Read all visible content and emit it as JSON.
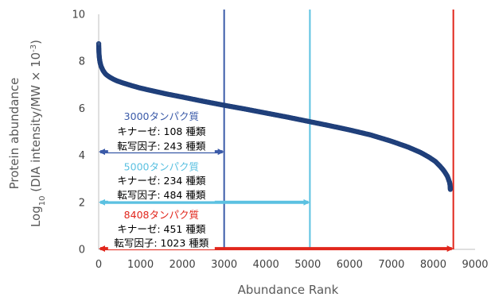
{
  "chart_data": {
    "type": "scatter",
    "title": "",
    "xlabel": "Abundance Rank",
    "ylabel_line1": "Protein abundance",
    "ylabel_line2_prefix": "Log",
    "ylabel_line2_sub": "10",
    "ylabel_line2_mid": " (DIA intensity/MW × 10",
    "ylabel_line2_sup": "-3",
    "ylabel_line2_end": ")",
    "xlim": [
      0,
      9000
    ],
    "ylim": [
      0,
      10
    ],
    "xticks": [
      0,
      1000,
      2000,
      3000,
      4000,
      5000,
      6000,
      7000,
      8000,
      9000
    ],
    "yticks": [
      0,
      2,
      4,
      6,
      8,
      10
    ],
    "grid": false,
    "series": [
      {
        "marker": "hollow-circle",
        "color": "#1f3f7a",
        "x": [
          1,
          3,
          6,
          10,
          15,
          22,
          30,
          40,
          55,
          75,
          100,
          130,
          170,
          220,
          280,
          350,
          450,
          600,
          800,
          1000,
          1300,
          1600,
          2000,
          2500,
          3000,
          3500,
          4000,
          4500,
          5000,
          5500,
          6000,
          6500,
          7000,
          7400,
          7700,
          7900,
          8050,
          8150,
          8230,
          8290,
          8340,
          8370,
          8390,
          8400,
          8405,
          8408
        ],
        "y": [
          8.75,
          8.55,
          8.4,
          8.28,
          8.18,
          8.08,
          7.98,
          7.9,
          7.8,
          7.72,
          7.62,
          7.54,
          7.45,
          7.38,
          7.31,
          7.24,
          7.16,
          7.07,
          6.96,
          6.86,
          6.74,
          6.62,
          6.48,
          6.3,
          6.13,
          5.97,
          5.8,
          5.63,
          5.45,
          5.27,
          5.08,
          4.87,
          4.6,
          4.35,
          4.12,
          3.92,
          3.74,
          3.56,
          3.4,
          3.25,
          3.1,
          2.95,
          2.85,
          2.75,
          2.65,
          2.55
        ]
      }
    ],
    "vlines": [
      {
        "x": 3000,
        "color": "#3a5aa8"
      },
      {
        "x": 5050,
        "color": "#5bc1e1"
      },
      {
        "x": 8480,
        "color": "#e1261c"
      }
    ],
    "arrows": [
      {
        "x_from": 0,
        "x_to": 3000,
        "y": 4.15,
        "color": "#3a5aa8"
      },
      {
        "x_from": 0,
        "x_to": 5050,
        "y": 2.0,
        "color": "#5bc1e1"
      },
      {
        "x_from": 0,
        "x_to": 8480,
        "y": 0.03,
        "color": "#e1261c"
      }
    ],
    "annotations": [
      {
        "x": 1500,
        "y": 5.65,
        "color": "#3a5aa8",
        "text": "3000タンパク質"
      },
      {
        "x": 1500,
        "y": 5.0,
        "color": "#000000",
        "text": "キナーゼ: 108 種類"
      },
      {
        "x": 1500,
        "y": 4.38,
        "color": "#000000",
        "text": "転写因子: 243 種類"
      },
      {
        "x": 1500,
        "y": 3.5,
        "color": "#5bc1e1",
        "text": "5000タンパク質"
      },
      {
        "x": 1500,
        "y": 2.9,
        "color": "#000000",
        "text": "キナーゼ: 234 種類"
      },
      {
        "x": 1500,
        "y": 2.3,
        "color": "#000000",
        "text": "転写因子: 484 種類"
      },
      {
        "x": 1500,
        "y": 1.45,
        "color": "#e1261c",
        "text": "8408タンパク質"
      },
      {
        "x": 1500,
        "y": 0.85,
        "color": "#000000",
        "text": "キナーゼ: 451 種類"
      },
      {
        "x": 1500,
        "y": 0.25,
        "color": "#000000",
        "text": "転写因子: 1023 種類"
      }
    ]
  }
}
